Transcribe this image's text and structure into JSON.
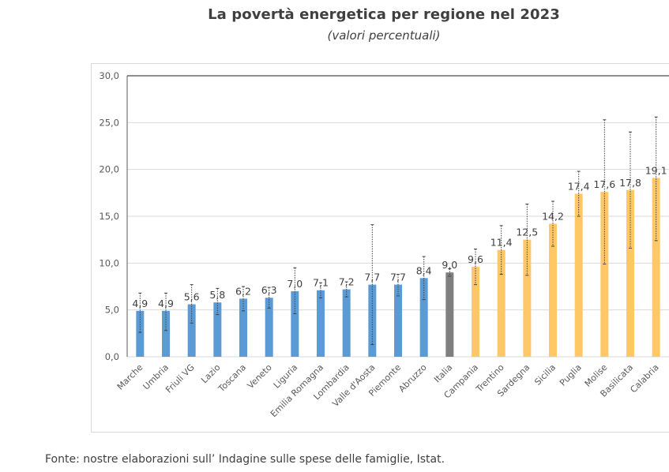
{
  "header": {
    "title": "La povertà energetica per regione nel 2023",
    "subtitle": "(valori percentuali)"
  },
  "footer": {
    "source": "Fonte: nostre elaborazioni sull’ Indagine sulle spese delle famiglie, Istat."
  },
  "colors": {
    "north_center": "#5B9BD5",
    "italy": "#7F7F7F",
    "south": "#FFC766",
    "grid": "#d9d9d9",
    "error_bar": "#404040"
  },
  "chart_data": {
    "type": "bar",
    "title": "La povertà energetica per regione nel 2023",
    "subtitle": "(valori percentuali)",
    "xlabel": "",
    "ylabel": "",
    "ylim": [
      0,
      30
    ],
    "yticks": [
      "0,0",
      "5,0",
      "10,0",
      "15,0",
      "20,0",
      "25,0",
      "30,0"
    ],
    "ytick_values": [
      0,
      5,
      10,
      15,
      20,
      25,
      30
    ],
    "grid": true,
    "legend": "none",
    "categories": [
      "Marche",
      "Umbria",
      "Friuli VG",
      "Lazio",
      "Toscana",
      "Veneto",
      "Liguria",
      "Emilia Romagna",
      "Lombardia",
      "Valle d'Aosta",
      "Piemonte",
      "Abruzzo",
      "Italia",
      "Campania",
      "Trentino",
      "Sardegna",
      "Sicilia",
      "Puglia",
      "Molise",
      "Basilicata",
      "Calabria"
    ],
    "values": [
      4.9,
      4.9,
      5.6,
      5.8,
      6.2,
      6.3,
      7.0,
      7.1,
      7.2,
      7.7,
      7.7,
      8.4,
      9.0,
      9.6,
      11.4,
      12.5,
      14.2,
      17.4,
      17.6,
      17.8,
      19.1
    ],
    "value_labels": [
      "4,9",
      "4,9",
      "5,6",
      "5,8",
      "6,2",
      "6,3",
      "7,0",
      "7,1",
      "7,2",
      "7,7",
      "7,7",
      "8,4",
      "9,0",
      "9,6",
      "11,4",
      "12,5",
      "14,2",
      "17,4",
      "17,6",
      "17,8",
      "19,1"
    ],
    "error_upper": [
      6.8,
      6.8,
      7.7,
      7.3,
      7.5,
      7.4,
      9.5,
      7.9,
      8.0,
      14.1,
      8.8,
      10.7,
      9.4,
      11.5,
      14.0,
      16.3,
      16.6,
      19.8,
      25.3,
      24.0,
      25.6
    ],
    "error_lower": [
      2.6,
      2.8,
      3.6,
      4.5,
      4.9,
      5.2,
      4.6,
      6.3,
      6.4,
      1.3,
      6.5,
      6.1,
      8.6,
      7.7,
      8.8,
      8.7,
      11.8,
      15.0,
      9.9,
      11.6,
      12.4
    ],
    "groups": [
      "north_center",
      "north_center",
      "north_center",
      "north_center",
      "north_center",
      "north_center",
      "north_center",
      "north_center",
      "north_center",
      "north_center",
      "north_center",
      "north_center",
      "italy",
      "south",
      "south",
      "south",
      "south",
      "south",
      "south",
      "south",
      "south"
    ]
  }
}
